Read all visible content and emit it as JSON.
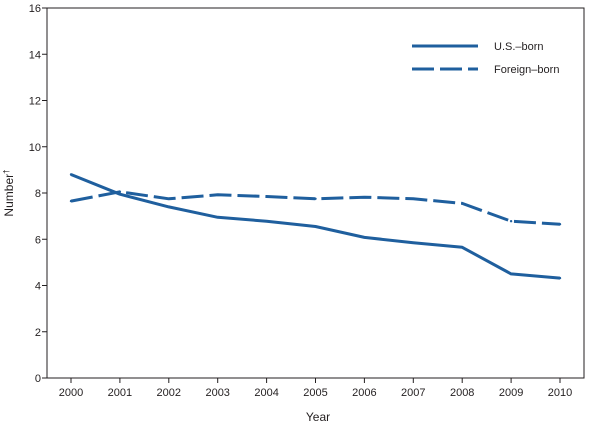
{
  "chart_data": {
    "type": "line",
    "title": "",
    "xlabel": "Year",
    "ylabel": "Number",
    "ylabel_superscript": "†",
    "ylim": [
      0,
      16
    ],
    "yticks": [
      0,
      2,
      4,
      6,
      8,
      10,
      12,
      14,
      16
    ],
    "x": [
      "2000",
      "2001",
      "2002",
      "2003",
      "2004",
      "2005",
      "2006",
      "2007",
      "2008",
      "2009",
      "2010"
    ],
    "grid": false,
    "legend_position": "top-right",
    "series": [
      {
        "name": "U.S.–born",
        "style": "solid",
        "color": "#1f5f9e",
        "values": [
          8.8,
          7.95,
          7.4,
          6.95,
          6.78,
          6.55,
          6.08,
          5.85,
          5.65,
          4.5,
          4.32
        ]
      },
      {
        "name": "Foreign–born",
        "style": "dashed",
        "color": "#1f5f9e",
        "values": [
          7.65,
          8.05,
          7.75,
          7.92,
          7.85,
          7.75,
          7.82,
          7.75,
          7.55,
          6.78,
          6.65
        ]
      }
    ]
  }
}
